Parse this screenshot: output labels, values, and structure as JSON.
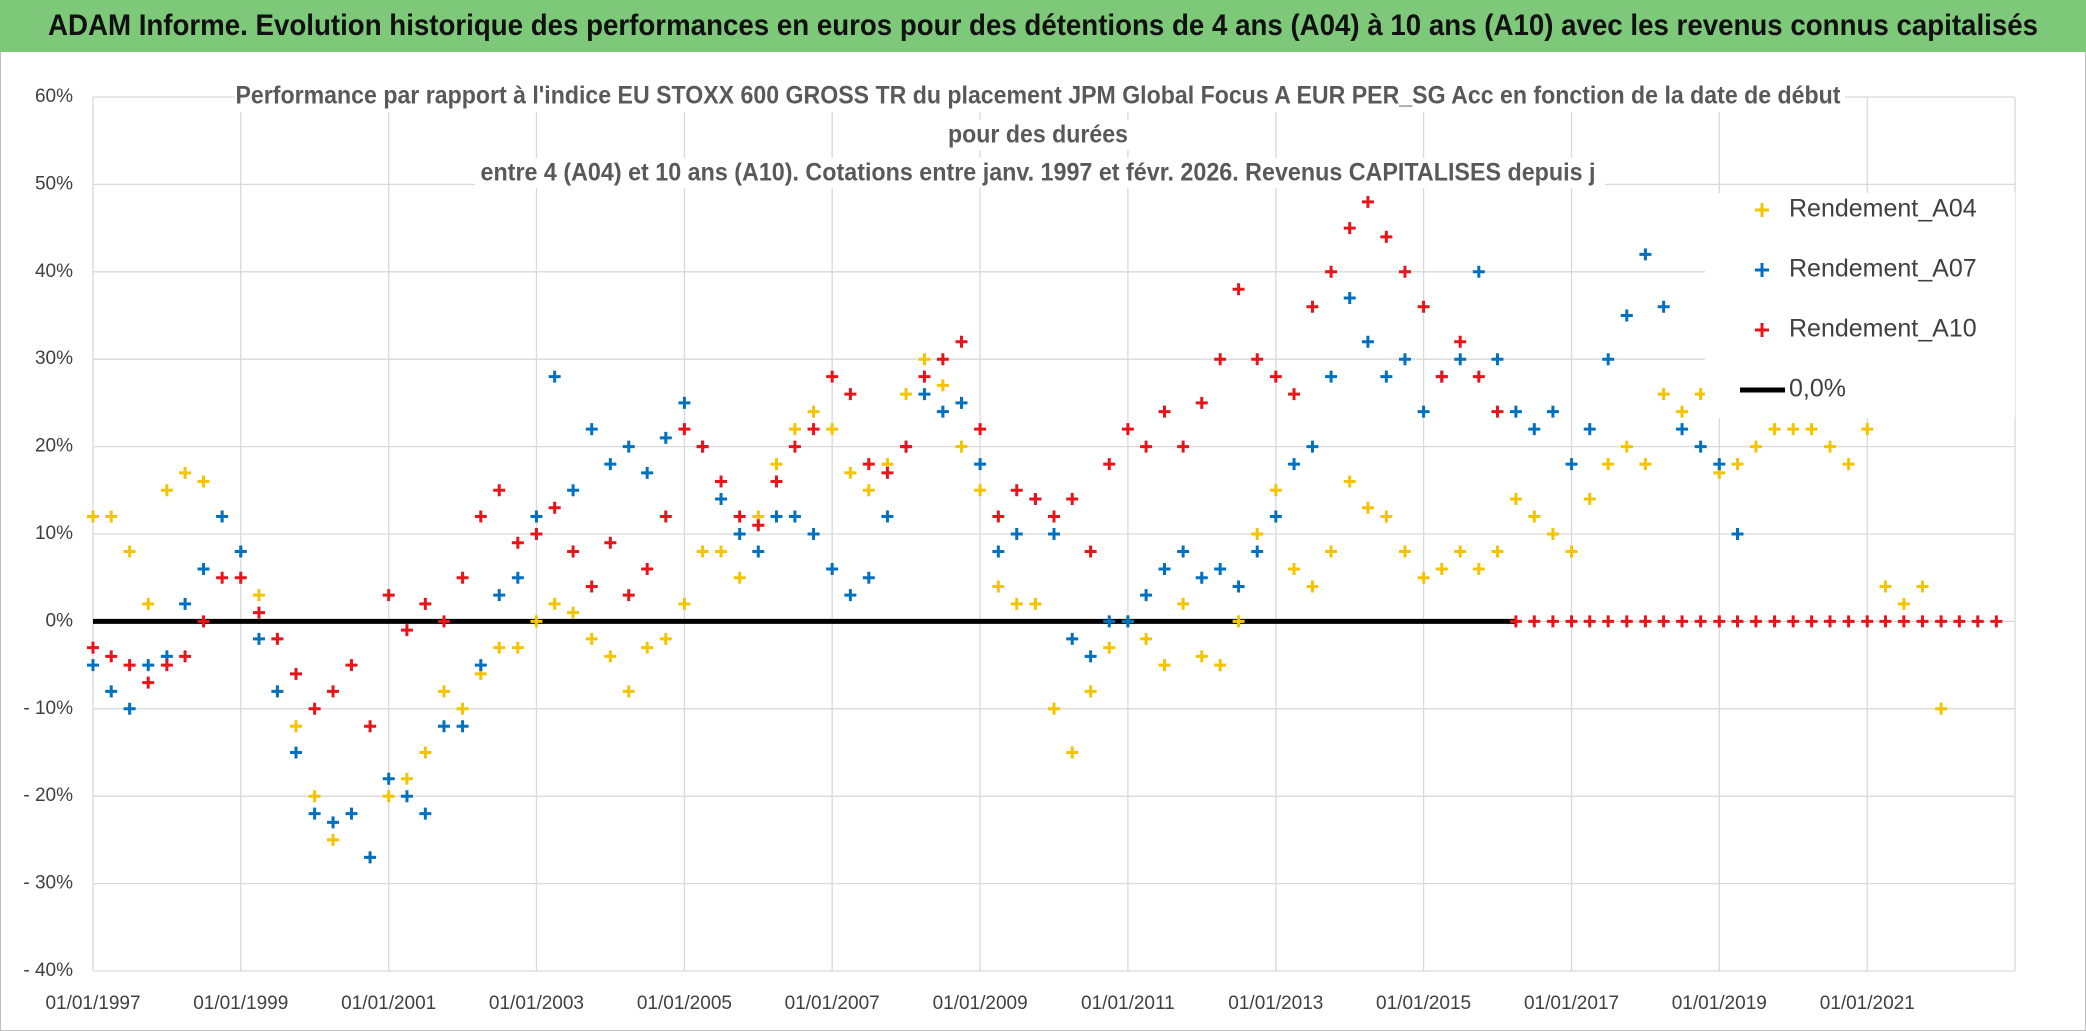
{
  "header": "ADAM Informe. Evolution historique des performances en euros pour des détentions de 4 ans (A04) à 10 ans (A10) avec les revenus connus capitalisés",
  "chart_data": {
    "type": "scatter",
    "title": [
      "Performance par rapport à l'indice EU STOXX 600 GROSS TR  du placement JPM Global Focus A EUR PER_SG Acc en fonction de la date de début",
      "pour des durées",
      "entre 4 (A04) et 10 ans (A10). Cotations entre janv. 1997 et févr. 2026. Revenus CAPITALISES depuis j"
    ],
    "xlim": [
      "1997-01-01",
      "2023-01-01"
    ],
    "xticks": [
      {
        "value": "1997-01-01",
        "label": "01/01/1997"
      },
      {
        "value": "1999-01-01",
        "label": "01/01/1999"
      },
      {
        "value": "2001-01-01",
        "label": "01/01/2001"
      },
      {
        "value": "2003-01-01",
        "label": "01/01/2003"
      },
      {
        "value": "2005-01-01",
        "label": "01/01/2005"
      },
      {
        "value": "2007-01-01",
        "label": "01/01/2007"
      },
      {
        "value": "2009-01-01",
        "label": "01/01/2009"
      },
      {
        "value": "2011-01-01",
        "label": "01/01/2011"
      },
      {
        "value": "2013-01-01",
        "label": "01/01/2013"
      },
      {
        "value": "2015-01-01",
        "label": "01/01/2015"
      },
      {
        "value": "2017-01-01",
        "label": "01/01/2017"
      },
      {
        "value": "2019-01-01",
        "label": "01/01/2019"
      },
      {
        "value": "2021-01-01",
        "label": "01/01/2021"
      }
    ],
    "ylim": [
      -40,
      60
    ],
    "yticks": [
      {
        "value": 60,
        "label": "60%"
      },
      {
        "value": 50,
        "label": "50%"
      },
      {
        "value": 40,
        "label": "40%"
      },
      {
        "value": 30,
        "label": "30%"
      },
      {
        "value": 20,
        "label": "20%"
      },
      {
        "value": 10,
        "label": "10%"
      },
      {
        "value": 0,
        "label": "0%"
      },
      {
        "value": -10,
        "label": "- 10%"
      },
      {
        "value": -20,
        "label": "- 20%"
      },
      {
        "value": -30,
        "label": "- 30%"
      },
      {
        "value": -40,
        "label": "- 40%"
      }
    ],
    "grid": true,
    "legend": "top-right",
    "x": [
      "1997-01-01",
      "1997-04-01",
      "1997-07-01",
      "1997-10-01",
      "1998-01-01",
      "1998-04-01",
      "1998-07-01",
      "1998-10-01",
      "1999-01-01",
      "1999-04-01",
      "1999-07-01",
      "1999-10-01",
      "2000-01-01",
      "2000-04-01",
      "2000-07-01",
      "2000-10-01",
      "2001-01-01",
      "2001-04-01",
      "2001-07-01",
      "2001-10-01",
      "2002-01-01",
      "2002-04-01",
      "2002-07-01",
      "2002-10-01",
      "2003-01-01",
      "2003-04-01",
      "2003-07-01",
      "2003-10-01",
      "2004-01-01",
      "2004-04-01",
      "2004-07-01",
      "2004-10-01",
      "2005-01-01",
      "2005-04-01",
      "2005-07-01",
      "2005-10-01",
      "2006-01-01",
      "2006-04-01",
      "2006-07-01",
      "2006-10-01",
      "2007-01-01",
      "2007-04-01",
      "2007-07-01",
      "2007-10-01",
      "2008-01-01",
      "2008-04-01",
      "2008-07-01",
      "2008-10-01",
      "2009-01-01",
      "2009-04-01",
      "2009-07-01",
      "2009-10-01",
      "2010-01-01",
      "2010-04-01",
      "2010-07-01",
      "2010-10-01",
      "2011-01-01",
      "2011-04-01",
      "2011-07-01",
      "2011-10-01",
      "2012-01-01",
      "2012-04-01",
      "2012-07-01",
      "2012-10-01",
      "2013-01-01",
      "2013-04-01",
      "2013-07-01",
      "2013-10-01",
      "2014-01-01",
      "2014-04-01",
      "2014-07-01",
      "2014-10-01",
      "2015-01-01",
      "2015-04-01",
      "2015-07-01",
      "2015-10-01",
      "2016-01-01",
      "2016-04-01",
      "2016-07-01",
      "2016-10-01",
      "2017-01-01",
      "2017-04-01",
      "2017-07-01",
      "2017-10-01",
      "2018-01-01",
      "2018-04-01",
      "2018-07-01",
      "2018-10-01",
      "2019-01-01",
      "2019-04-01",
      "2019-07-01",
      "2019-10-01",
      "2020-01-01",
      "2020-04-01",
      "2020-07-01",
      "2020-10-01",
      "2021-01-01",
      "2021-04-01",
      "2021-07-01",
      "2021-10-01",
      "2022-01-01",
      "2022-04-01",
      "2022-07-01",
      "2022-10-01"
    ],
    "series": [
      {
        "name": "Rendement_A04",
        "color": "#f5c400",
        "values": [
          12,
          12,
          8,
          2,
          15,
          17,
          16,
          12,
          8,
          3,
          -8,
          -12,
          -20,
          -25,
          -22,
          -27,
          -20,
          -18,
          -15,
          -8,
          -10,
          -6,
          -3,
          -3,
          0,
          2,
          1,
          -2,
          -4,
          -8,
          -3,
          -2,
          2,
          8,
          8,
          5,
          12,
          18,
          22,
          24,
          22,
          17,
          15,
          18,
          26,
          30,
          27,
          20,
          15,
          4,
          2,
          2,
          -10,
          -15,
          -8,
          -3,
          0,
          -2,
          -5,
          2,
          -4,
          -5,
          0,
          10,
          15,
          6,
          4,
          8,
          16,
          13,
          12,
          8,
          5,
          6,
          8,
          6,
          8,
          14,
          12,
          10,
          8,
          14,
          18,
          20,
          18,
          26,
          24,
          26,
          17,
          18,
          20,
          22,
          22,
          22,
          20,
          18,
          22,
          4,
          2,
          4,
          -10,
          null,
          null,
          null
        ]
      },
      {
        "name": "Rendement_A07",
        "color": "#0070c0",
        "values": [
          -5,
          -8,
          -10,
          -5,
          -4,
          2,
          6,
          12,
          8,
          -2,
          -8,
          -15,
          -22,
          -23,
          -22,
          -27,
          -18,
          -20,
          -22,
          -12,
          -12,
          -5,
          3,
          5,
          12,
          28,
          15,
          22,
          18,
          20,
          17,
          21,
          25,
          20,
          14,
          10,
          8,
          12,
          12,
          10,
          6,
          3,
          5,
          12,
          20,
          26,
          24,
          25,
          18,
          8,
          10,
          14,
          10,
          -2,
          -4,
          0,
          0,
          3,
          6,
          8,
          5,
          6,
          4,
          8,
          12,
          18,
          20,
          28,
          37,
          32,
          28,
          30,
          24,
          28,
          30,
          40,
          30,
          24,
          22,
          24,
          18,
          22,
          30,
          35,
          42,
          36,
          22,
          20,
          18,
          10,
          null,
          null,
          null,
          null,
          null,
          null,
          null,
          null,
          null,
          null,
          null,
          null,
          null,
          null
        ]
      },
      {
        "name": "Rendement_A10",
        "color": "#e8141a",
        "values": [
          -3,
          -4,
          -5,
          -7,
          -5,
          -4,
          0,
          5,
          5,
          1,
          -2,
          -6,
          -10,
          -8,
          -5,
          -12,
          3,
          -1,
          2,
          0,
          5,
          12,
          15,
          9,
          10,
          13,
          8,
          4,
          9,
          3,
          6,
          12,
          22,
          20,
          16,
          12,
          11,
          16,
          20,
          22,
          28,
          26,
          18,
          17,
          20,
          28,
          30,
          32,
          22,
          12,
          15,
          14,
          12,
          14,
          8,
          18,
          22,
          20,
          24,
          20,
          25,
          30,
          38,
          30,
          28,
          26,
          36,
          40,
          45,
          48,
          44,
          40,
          36,
          28,
          32,
          28,
          24,
          0,
          0,
          0,
          0,
          0,
          0,
          0,
          0,
          0,
          0,
          0,
          0,
          0,
          0,
          0,
          0,
          0,
          0,
          0,
          0,
          0,
          0,
          0,
          0,
          0,
          0,
          0
        ]
      }
    ],
    "reference_line": {
      "name": "0,0%",
      "color": "#000000",
      "value": 0,
      "x": [
        "1997-01-01",
        "2016-04-01"
      ]
    }
  }
}
